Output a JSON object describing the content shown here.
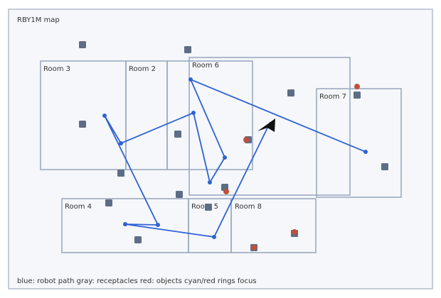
{
  "title": "RBY1M map",
  "rooms": [
    "Room 3",
    "Room 2",
    "Room 6",
    "Room 7",
    "Room 4",
    "Room 5",
    "Room 8"
  ],
  "legend": "blue: robot path gray: receptacles red: objects cyan/red rings focus"
}
